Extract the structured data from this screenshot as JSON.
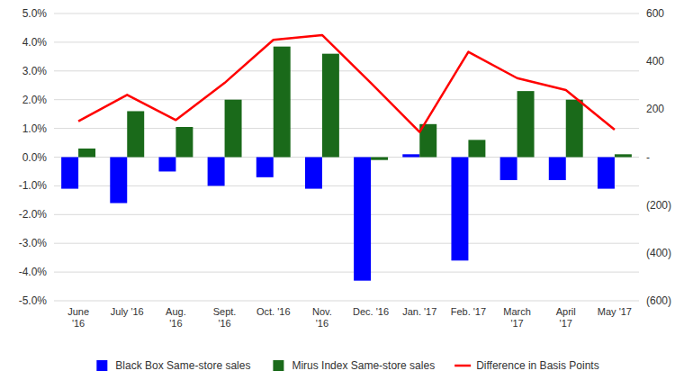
{
  "chart_data": {
    "type": "bar",
    "categories": [
      "June\n'16",
      "July '16",
      "Aug.\n'16",
      "Sept.\n'16",
      "Oct. '16",
      "Nov.\n'16",
      "Dec. '16",
      "Jan. '17",
      "Feb. '17",
      "March\n'17",
      "April\n'17",
      "May '17"
    ],
    "series": [
      {
        "name": "Black Box Same-store sales",
        "type": "bar",
        "color": "#0000FF",
        "values": [
          -0.011,
          -0.016,
          -0.005,
          -0.01,
          -0.007,
          -0.011,
          -0.043,
          0.001,
          -0.036,
          -0.008,
          -0.008,
          -0.011
        ]
      },
      {
        "name": "Mirus Index Same-store sales",
        "type": "bar",
        "color": "#1a6a1a",
        "values": [
          0.003,
          0.016,
          0.0105,
          0.02,
          0.0385,
          0.036,
          -0.001,
          0.0115,
          0.006,
          0.023,
          0.02,
          0.001
        ]
      },
      {
        "name": "Difference in Basis Points",
        "type": "line",
        "axis": "y2",
        "color": "#FF0000",
        "values": [
          150,
          260,
          155,
          310,
          490,
          510,
          310,
          105,
          440,
          330,
          280,
          115
        ]
      }
    ],
    "ylim": [
      -0.05,
      0.05
    ],
    "yticks": [
      {
        "value": -0.05,
        "label": "-5.0%"
      },
      {
        "value": -0.04,
        "label": "-4.0%"
      },
      {
        "value": -0.03,
        "label": "-3.0%"
      },
      {
        "value": -0.02,
        "label": "-2.0%"
      },
      {
        "value": -0.01,
        "label": "-1.0%"
      },
      {
        "value": 0.0,
        "label": "0.0%"
      },
      {
        "value": 0.01,
        "label": "1.0%"
      },
      {
        "value": 0.02,
        "label": "2.0%"
      },
      {
        "value": 0.03,
        "label": "3.0%"
      },
      {
        "value": 0.04,
        "label": "4.0%"
      },
      {
        "value": 0.05,
        "label": "5.0%"
      }
    ],
    "y2lim": [
      -600,
      600
    ],
    "y2ticks": [
      {
        "value": -600,
        "label": "(600)"
      },
      {
        "value": -400,
        "label": "(400)"
      },
      {
        "value": -200,
        "label": "(200)"
      },
      {
        "value": 0,
        "label": "-"
      },
      200,
      400,
      600
    ],
    "grid": true,
    "legend": "bottom"
  }
}
